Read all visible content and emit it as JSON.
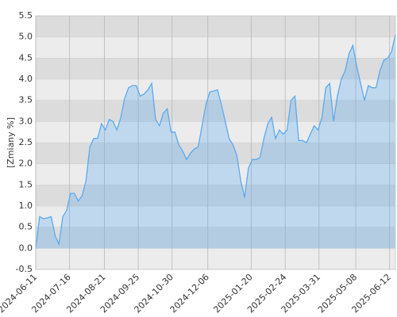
{
  "chart_data": {
    "type": "area",
    "y_label": "[Zmiany %]",
    "x": [
      "2024-06-11",
      "2024-06-15",
      "2024-06-19",
      "2024-06-23",
      "2024-06-27",
      "2024-07-01",
      "2024-07-05",
      "2024-07-09",
      "2024-07-13",
      "2024-07-17",
      "2024-07-21",
      "2024-07-25",
      "2024-07-29",
      "2024-08-02",
      "2024-08-06",
      "2024-08-10",
      "2024-08-14",
      "2024-08-18",
      "2024-08-22",
      "2024-08-26",
      "2024-08-30",
      "2024-09-03",
      "2024-09-07",
      "2024-09-11",
      "2024-09-15",
      "2024-09-19",
      "2024-09-23",
      "2024-09-27",
      "2024-10-01",
      "2024-10-05",
      "2024-10-09",
      "2024-10-13",
      "2024-10-17",
      "2024-10-21",
      "2024-10-25",
      "2024-10-29",
      "2024-11-02",
      "2024-11-06",
      "2024-11-10",
      "2024-11-14",
      "2024-11-18",
      "2024-11-22",
      "2024-11-26",
      "2024-11-30",
      "2024-12-04",
      "2024-12-08",
      "2024-12-12",
      "2024-12-16",
      "2024-12-20",
      "2024-12-24",
      "2024-12-28",
      "2025-01-01",
      "2025-01-05",
      "2025-01-09",
      "2025-01-13",
      "2025-01-17",
      "2025-01-21",
      "2025-01-25",
      "2025-01-29",
      "2025-02-02",
      "2025-02-06",
      "2025-02-10",
      "2025-02-14",
      "2025-02-18",
      "2025-02-22",
      "2025-02-26",
      "2025-03-02",
      "2025-03-06",
      "2025-03-10",
      "2025-03-14",
      "2025-03-18",
      "2025-03-22",
      "2025-03-26",
      "2025-03-30",
      "2025-04-03",
      "2025-04-07",
      "2025-04-11",
      "2025-04-15",
      "2025-04-19",
      "2025-04-23",
      "2025-04-27",
      "2025-05-01",
      "2025-05-05",
      "2025-05-09",
      "2025-05-13",
      "2025-05-17",
      "2025-05-21",
      "2025-05-25",
      "2025-05-29",
      "2025-06-02",
      "2025-06-06",
      "2025-06-10",
      "2025-06-14",
      "2025-06-18"
    ],
    "values": [
      0.0,
      0.75,
      0.7,
      0.72,
      0.75,
      0.3,
      0.1,
      0.75,
      0.9,
      1.3,
      1.3,
      1.12,
      1.25,
      1.6,
      2.4,
      2.6,
      2.6,
      2.95,
      2.8,
      3.05,
      3.0,
      2.8,
      3.1,
      3.55,
      3.8,
      3.85,
      3.85,
      3.6,
      3.65,
      3.75,
      3.9,
      3.05,
      2.9,
      3.2,
      3.3,
      2.75,
      2.75,
      2.45,
      2.3,
      2.1,
      2.25,
      2.35,
      2.4,
      2.9,
      3.4,
      3.7,
      3.72,
      3.75,
      3.4,
      3.0,
      2.6,
      2.45,
      2.2,
      1.6,
      1.2,
      1.9,
      2.1,
      2.1,
      2.15,
      2.6,
      2.95,
      3.1,
      2.6,
      2.8,
      2.7,
      2.8,
      3.5,
      3.6,
      2.55,
      2.55,
      2.5,
      2.7,
      2.9,
      2.8,
      3.1,
      3.8,
      3.9,
      3.0,
      3.6,
      4.0,
      4.2,
      4.6,
      4.8,
      4.3,
      3.9,
      3.5,
      3.85,
      3.8,
      3.8,
      4.2,
      4.45,
      4.5,
      4.65,
      5.05
    ],
    "color": "#5aaaf0",
    "xlim": [
      "2024-06-11",
      "2025-06-18"
    ],
    "xticks": [
      "2024-06-11",
      "2024-07-16",
      "2024-08-21",
      "2024-09-25",
      "2024-10-30",
      "2024-12-06",
      "2025-01-20",
      "2025-02-24",
      "2025-03-31",
      "2025-05-08",
      "2025-06-12"
    ],
    "ylim": [
      -0.5,
      5.5
    ],
    "yticks": [
      -0.5,
      {
        "value": 0,
        "label": "0.0"
      },
      0.5,
      {
        "value": 1,
        "label": "1.0"
      },
      1.5,
      {
        "value": 2,
        "label": "2.0"
      },
      2.5,
      {
        "value": 3,
        "label": "3.0"
      },
      3.5,
      {
        "value": 4,
        "label": "4.0"
      },
      4.5,
      {
        "value": 5,
        "label": "5.0"
      },
      5.5
    ],
    "grid": true
  }
}
